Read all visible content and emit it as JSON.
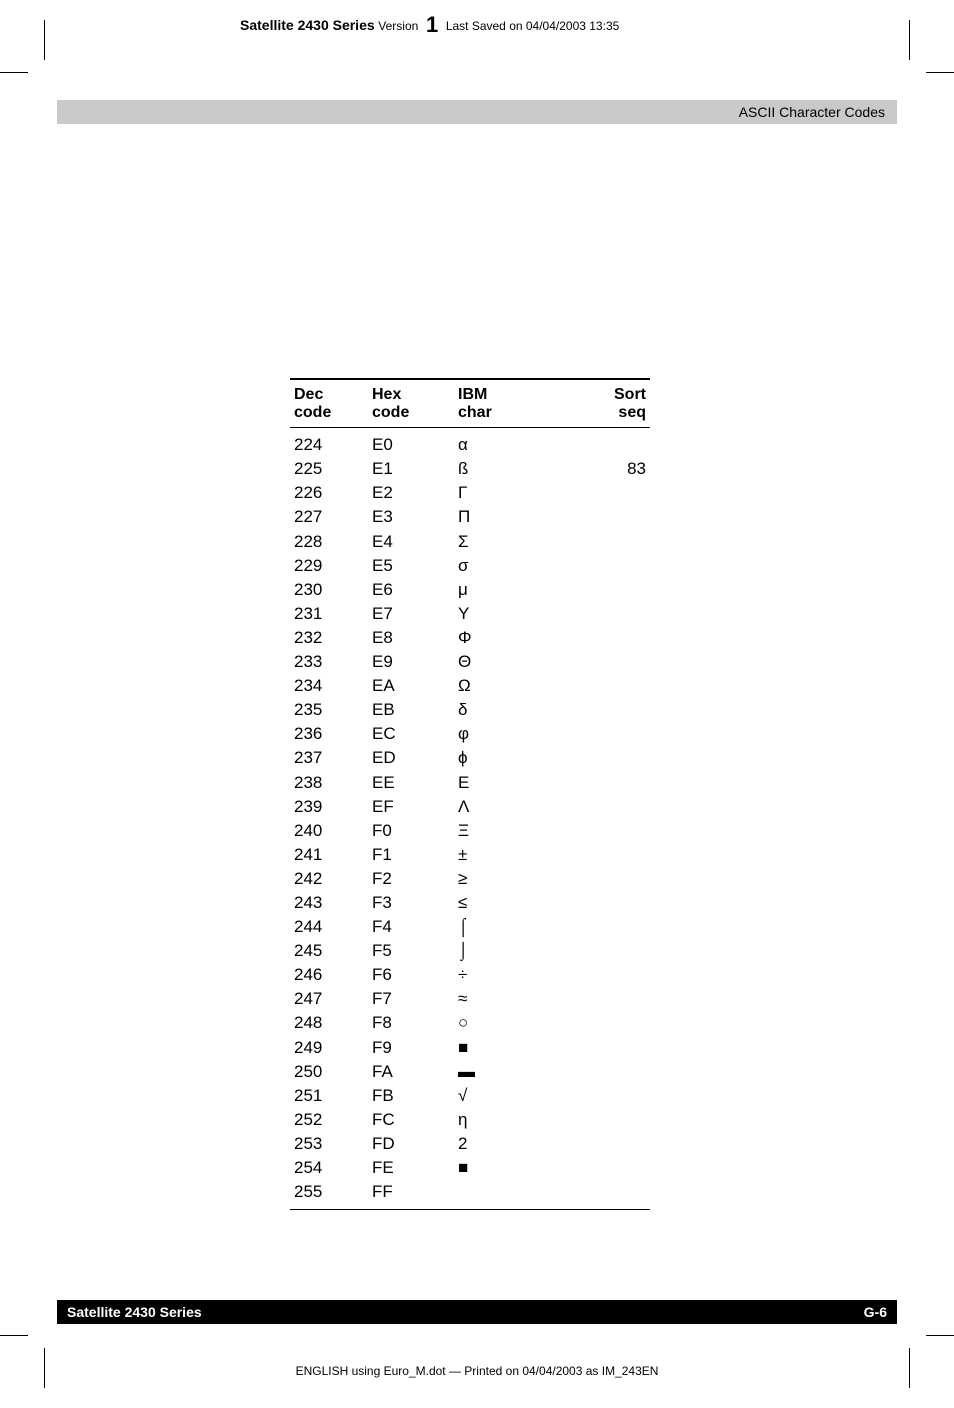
{
  "header": {
    "series_bold": "Satellite 2430 Series",
    "version_label": "Version",
    "version_num": "1",
    "saved": "Last Saved on 04/04/2003 13:35"
  },
  "graybar": {
    "title": "ASCII Character Codes"
  },
  "table": {
    "headers": {
      "dec1": "Dec",
      "dec2": "code",
      "hex1": "Hex",
      "hex2": "code",
      "ibm1": "IBM",
      "ibm2": "char",
      "sort1": "Sort",
      "sort2": "seq"
    },
    "rows": [
      {
        "dec": "224",
        "hex": "E0",
        "ibm": "α",
        "sort": ""
      },
      {
        "dec": "225",
        "hex": "E1",
        "ibm": "ß",
        "sort": "83"
      },
      {
        "dec": "226",
        "hex": "E2",
        "ibm": "Γ",
        "sort": ""
      },
      {
        "dec": "227",
        "hex": "E3",
        "ibm": "Π",
        "sort": ""
      },
      {
        "dec": "228",
        "hex": "E4",
        "ibm": "Σ",
        "sort": ""
      },
      {
        "dec": "229",
        "hex": "E5",
        "ibm": "σ",
        "sort": ""
      },
      {
        "dec": "230",
        "hex": "E6",
        "ibm": "μ",
        "sort": ""
      },
      {
        "dec": "231",
        "hex": "E7",
        "ibm": "Υ",
        "sort": ""
      },
      {
        "dec": "232",
        "hex": "E8",
        "ibm": "Φ",
        "sort": ""
      },
      {
        "dec": "233",
        "hex": "E9",
        "ibm": "Θ",
        "sort": ""
      },
      {
        "dec": "234",
        "hex": "EA",
        "ibm": "Ω",
        "sort": ""
      },
      {
        "dec": "235",
        "hex": "EB",
        "ibm": "δ",
        "sort": ""
      },
      {
        "dec": "236",
        "hex": "EC",
        "ibm": "φ",
        "sort": ""
      },
      {
        "dec": "237",
        "hex": "ED",
        "ibm": "ϕ",
        "sort": ""
      },
      {
        "dec": "238",
        "hex": "EE",
        "ibm": "Ε",
        "sort": ""
      },
      {
        "dec": "239",
        "hex": "EF",
        "ibm": "Λ",
        "sort": ""
      },
      {
        "dec": "240",
        "hex": "F0",
        "ibm": "Ξ",
        "sort": ""
      },
      {
        "dec": "241",
        "hex": "F1",
        "ibm": "±",
        "sort": ""
      },
      {
        "dec": "242",
        "hex": "F2",
        "ibm": "≥",
        "sort": ""
      },
      {
        "dec": "243",
        "hex": "F3",
        "ibm": "≤",
        "sort": ""
      },
      {
        "dec": "244",
        "hex": "F4",
        "ibm": "⌠",
        "sort": ""
      },
      {
        "dec": "245",
        "hex": "F5",
        "ibm": "⌡",
        "sort": ""
      },
      {
        "dec": "246",
        "hex": "F6",
        "ibm": "÷",
        "sort": ""
      },
      {
        "dec": "247",
        "hex": "F7",
        "ibm": "≈",
        "sort": ""
      },
      {
        "dec": "248",
        "hex": "F8",
        "ibm": "○",
        "sort": ""
      },
      {
        "dec": "249",
        "hex": "F9",
        "ibm": "■",
        "sort": ""
      },
      {
        "dec": "250",
        "hex": "FA",
        "ibm": "▬",
        "sort": ""
      },
      {
        "dec": "251",
        "hex": "FB",
        "ibm": "√",
        "sort": ""
      },
      {
        "dec": "252",
        "hex": "FC",
        "ibm": "η",
        "sort": ""
      },
      {
        "dec": "253",
        "hex": "FD",
        "ibm": "2",
        "sort": ""
      },
      {
        "dec": "254",
        "hex": "FE",
        "ibm": "■",
        "sort": ""
      },
      {
        "dec": "255",
        "hex": "FF",
        "ibm": "",
        "sort": ""
      }
    ]
  },
  "footer": {
    "left": "Satellite 2430 Series",
    "right": "G-6",
    "bottom": "ENGLISH using  Euro_M.dot — Printed on 04/04/2003 as IM_243EN"
  }
}
